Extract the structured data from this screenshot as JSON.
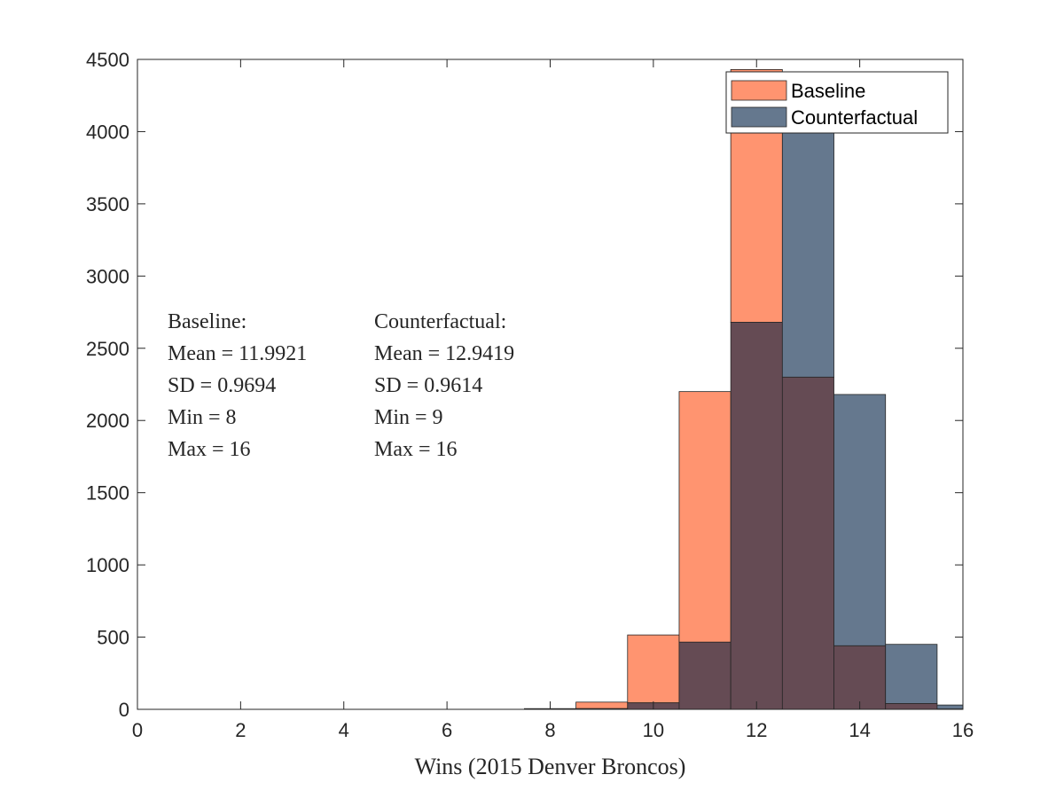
{
  "chart_data": {
    "type": "bar",
    "subtype": "overlapping-histogram",
    "title": "",
    "xlabel": "Wins (2015 Denver Broncos)",
    "ylabel": "",
    "xlim": [
      0,
      16
    ],
    "ylim": [
      0,
      4500
    ],
    "xticks": [
      0,
      2,
      4,
      6,
      8,
      10,
      12,
      14,
      16
    ],
    "yticks": [
      0,
      500,
      1000,
      1500,
      2000,
      2500,
      3000,
      3500,
      4000,
      4500
    ],
    "grid": false,
    "bin_width": 1,
    "categories": [
      "8",
      "9",
      "10",
      "11",
      "12",
      "13",
      "14",
      "15",
      "16"
    ],
    "series": [
      {
        "name": "Baseline",
        "color": "#ff9470",
        "x": [
          8,
          9,
          10,
          11,
          12,
          13,
          14,
          15,
          16
        ],
        "values": [
          5,
          50,
          515,
          2200,
          4430,
          2300,
          440,
          40,
          2
        ]
      },
      {
        "name": "Counterfactual",
        "color": "#65788e",
        "x": [
          8,
          9,
          10,
          11,
          12,
          13,
          14,
          15,
          16
        ],
        "values": [
          0,
          5,
          45,
          465,
          2680,
          4335,
          2180,
          450,
          30
        ]
      }
    ],
    "overlap_color": "#654b54",
    "legend": {
      "placement": "top-right",
      "entries": [
        "Baseline",
        "Counterfactual"
      ]
    },
    "annotations": {
      "baseline": [
        "Baseline:",
        "Mean = 11.9921",
        "SD = 0.9694",
        "Min = 8",
        "Max = 16"
      ],
      "counterfactual": [
        "Counterfactual:",
        "Mean = 12.9419",
        "SD = 0.9614",
        "Min = 9",
        "Max = 16"
      ]
    }
  }
}
